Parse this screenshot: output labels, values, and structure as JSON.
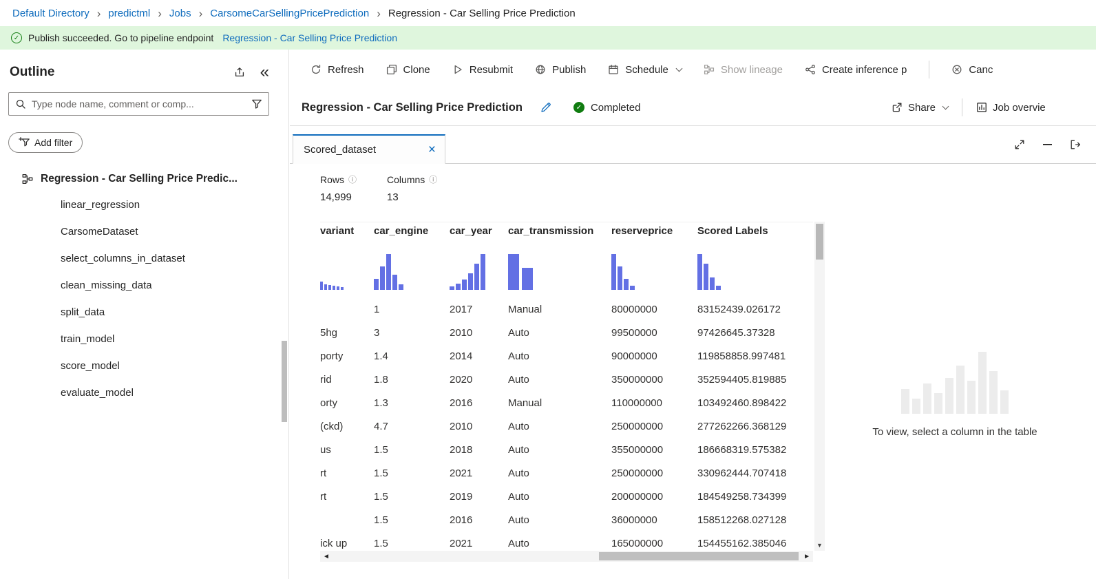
{
  "colors": {
    "accent": "#0f6cbd",
    "histogram": "#6370e4",
    "success": "#107c10",
    "banner_bg": "#dff6dd",
    "disabled": "#a19f9d",
    "placeholder_bar": "#ececec"
  },
  "breadcrumb": {
    "items": [
      {
        "label": "Default Directory",
        "sep": true
      },
      {
        "label": "predictml",
        "sep": true
      },
      {
        "label": "Jobs",
        "sep": true
      },
      {
        "label": "CarsomeCarSellingPricePrediction",
        "sep": true
      },
      {
        "label": "Regression - Car Selling Price Prediction",
        "current": true
      }
    ]
  },
  "banner": {
    "message": "Publish succeeded. Go to pipeline endpoint",
    "link_label": "Regression - Car Selling Price Prediction"
  },
  "sidebar": {
    "title": "Outline",
    "search_placeholder": "Type node name, comment or comp...",
    "add_filter_label": "Add filter",
    "root_label": "Regression - Car Selling Price Predic...",
    "nodes": [
      "linear_regression",
      "CarsomeDataset",
      "select_columns_in_dataset",
      "clean_missing_data",
      "split_data",
      "train_model",
      "score_model",
      "evaluate_model"
    ]
  },
  "toolbar": {
    "buttons": [
      {
        "label": "Refresh",
        "icon": "refresh-icon"
      },
      {
        "label": "Clone",
        "icon": "clone-icon"
      },
      {
        "label": "Resubmit",
        "icon": "resubmit-icon"
      },
      {
        "label": "Publish",
        "icon": "publish-icon"
      },
      {
        "label": "Schedule",
        "icon": "schedule-icon",
        "dropdown": true
      },
      {
        "label": "Show lineage",
        "icon": "lineage-icon",
        "disabled": true
      },
      {
        "label": "Create inference p",
        "icon": "inference-icon"
      },
      {
        "label": "Canc",
        "icon": "cancel-icon",
        "divider_before": true
      }
    ]
  },
  "header": {
    "title": "Regression - Car Selling Price Prediction",
    "status": "Completed",
    "share_label": "Share",
    "job_overview_label": "Job overvie"
  },
  "preview": {
    "tab_label": "Scored_dataset",
    "stats": [
      {
        "label": "Rows",
        "value": "14,999"
      },
      {
        "label": "Columns",
        "value": "13"
      }
    ],
    "placeholder_text": "To view, select a column in the table",
    "placeholder_bars": [
      36,
      22,
      44,
      30,
      52,
      70,
      48,
      90,
      62,
      34
    ]
  },
  "table": {
    "columns": [
      {
        "name": "variant",
        "histogram": [
          12,
          8,
          7,
          6,
          5,
          4
        ],
        "narrow_bars": true
      },
      {
        "name": "car_engine",
        "histogram": [
          16,
          34,
          52,
          22,
          8
        ]
      },
      {
        "name": "car_year",
        "histogram": [
          5,
          9,
          15,
          24,
          38,
          52
        ]
      },
      {
        "name": "car_transmission",
        "histogram": [
          52,
          32
        ],
        "wide_bars": true
      },
      {
        "name": "reserveprice",
        "histogram": [
          52,
          34,
          16,
          6
        ]
      },
      {
        "name": "Scored Labels",
        "histogram": [
          52,
          38,
          18,
          6
        ]
      }
    ],
    "rows": [
      [
        "",
        "1",
        "2017",
        "Manual",
        "80000000",
        "83152439.026172"
      ],
      [
        "5hg",
        "3",
        "2010",
        "Auto",
        "99500000",
        "97426645.37328"
      ],
      [
        "porty",
        "1.4",
        "2014",
        "Auto",
        "90000000",
        "119858858.997481"
      ],
      [
        "rid",
        "1.8",
        "2020",
        "Auto",
        "350000000",
        "352594405.819885"
      ],
      [
        "orty",
        "1.3",
        "2016",
        "Manual",
        "110000000",
        "103492460.898422"
      ],
      [
        "(ckd)",
        "4.7",
        "2010",
        "Auto",
        "250000000",
        "277262266.368129"
      ],
      [
        "us",
        "1.5",
        "2018",
        "Auto",
        "355000000",
        "186668319.575382"
      ],
      [
        "rt",
        "1.5",
        "2021",
        "Auto",
        "250000000",
        "330962444.707418"
      ],
      [
        "rt",
        "1.5",
        "2019",
        "Auto",
        "200000000",
        "184549258.734399"
      ],
      [
        "",
        "1.5",
        "2016",
        "Auto",
        "36000000",
        "158512268.027128"
      ],
      [
        "ick up",
        "1.5",
        "2021",
        "Auto",
        "165000000",
        "154455162.385046"
      ]
    ]
  }
}
